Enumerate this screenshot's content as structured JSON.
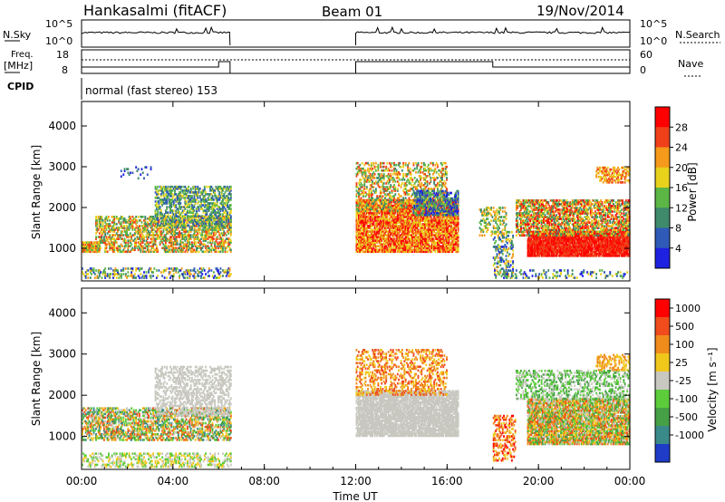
{
  "chart_data": {
    "type": "heatmap",
    "header": {
      "station": "Hankasalmi (fitACF)",
      "beam": "Beam 01",
      "date": "19/Nov/2014",
      "cpid_label": "CPID",
      "cpid_text": "normal (fast stereo) 153"
    },
    "noise_panel": {
      "left_label": "N.Sky",
      "right_label": "N.Search",
      "left_ticks": [
        "10^5",
        "10^0"
      ],
      "right_ticks": [
        "10^5",
        "10^0"
      ],
      "data_segments_ut": [
        [
          0.0,
          6.5
        ],
        [
          12.0,
          24.0
        ]
      ]
    },
    "freq_panel": {
      "left_label_line1": "Freq.",
      "left_label_line2": "[MHz]",
      "right_label": "Nave",
      "left_ticks": [
        "18",
        "8"
      ],
      "right_ticks": [
        "60",
        "0"
      ]
    },
    "x_axis": {
      "label": "Time UT",
      "tick_labels": [
        "00:00",
        "04:00",
        "08:00",
        "12:00",
        "16:00",
        "20:00",
        "00:00"
      ],
      "range_hours": [
        0,
        24
      ]
    },
    "panels": [
      {
        "name": "Power",
        "ylabel": "Slant Range [km]",
        "yticks": [
          "4000",
          "3000",
          "2000",
          "1000"
        ],
        "ylim_km": [
          200,
          4600
        ],
        "colorbar_label": "Power [dB]",
        "colorbar_ticks": [
          "28",
          "24",
          "20",
          "16",
          "12",
          "8",
          "4"
        ],
        "colors": [
          "#1e22e0",
          "#2f5ab8",
          "#3e8a6a",
          "#5cb646",
          "#e8d21c",
          "#f59a1a",
          "#f0401a",
          "#ff0000"
        ]
      },
      {
        "name": "Velocity",
        "ylabel": "Slant Range [km]",
        "yticks": [
          "4000",
          "3000",
          "2000",
          "1000"
        ],
        "ylim_km": [
          200,
          4600
        ],
        "colorbar_label": "Velocity [m s⁻¹]",
        "colorbar_ticks": [
          "1000",
          "500",
          "100",
          "25",
          "-25",
          "-100",
          "-500",
          "-1000"
        ],
        "colors": [
          "#1e3cc8",
          "#3a8a8a",
          "#46a046",
          "#5ccc3a",
          "#c8c8c0",
          "#f0c81c",
          "#f08c1c",
          "#f04c1c",
          "#ff0000"
        ]
      }
    ],
    "grid": false
  }
}
